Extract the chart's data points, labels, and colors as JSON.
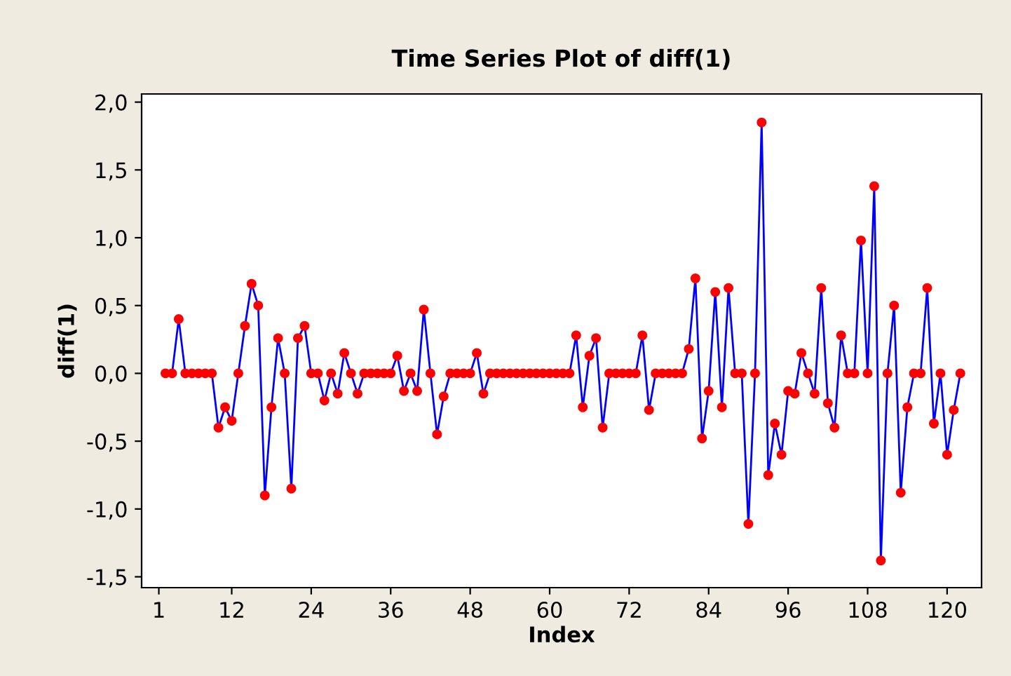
{
  "chart_data": {
    "type": "line",
    "title": "Time Series Plot of diff(1)",
    "xlabel": "Index",
    "ylabel": "diff(1)",
    "x": [
      2,
      3,
      4,
      5,
      6,
      7,
      8,
      9,
      10,
      11,
      12,
      13,
      14,
      15,
      16,
      17,
      18,
      19,
      20,
      21,
      22,
      23,
      24,
      25,
      26,
      27,
      28,
      29,
      30,
      31,
      32,
      33,
      34,
      35,
      36,
      37,
      38,
      39,
      40,
      41,
      42,
      43,
      44,
      45,
      46,
      47,
      48,
      49,
      50,
      51,
      52,
      53,
      54,
      55,
      56,
      57,
      58,
      59,
      60,
      61,
      62,
      63,
      64,
      65,
      66,
      67,
      68,
      69,
      70,
      71,
      72,
      73,
      74,
      75,
      76,
      77,
      78,
      79,
      80,
      81,
      82,
      83,
      84,
      85,
      86,
      87,
      88,
      89,
      90,
      91,
      92,
      93,
      94,
      95,
      96,
      97,
      98,
      99,
      100,
      101,
      102,
      103,
      104,
      105,
      106,
      107,
      108,
      109,
      110,
      111,
      112,
      113,
      114,
      115,
      116,
      117,
      118,
      119,
      120,
      121,
      122
    ],
    "series": [
      {
        "color": "#0000ff",
        "colors": [
          "#ff0000",
          "#ff0000",
          "#ff0000",
          "#ff0000",
          "#ff0000",
          "#ff0000",
          "#ff0000",
          "#ff0000",
          "#ff0000",
          "#ff0000",
          "#ff0000",
          "#ff0000",
          "#ff0000",
          "#ff0000",
          "#ff0000",
          "#ff0000",
          "#ff0000",
          "#ff0000",
          "#ff0000",
          "#ff0000",
          "#ff0000",
          "#ff0000",
          "#ff0000",
          "#ff0000",
          "#ff0000",
          "#ff0000",
          "#ff0000",
          "#ff0000",
          "#ff0000",
          "#ff0000",
          "#ff0000",
          "#ff0000",
          "#ff0000",
          "#ff0000",
          "#ff0000",
          "#ff0000",
          "#ff0000",
          "#ff0000",
          "#ff0000",
          "#ff0000",
          "#ff0000",
          "#ff0000",
          "#ff0000",
          "#ff0000",
          "#ff0000",
          "#ff0000",
          "#ff0000",
          "#ff0000",
          "#ff0000",
          "#ff0000",
          "#ff0000",
          "#ff0000",
          "#ff0000",
          "#ff0000",
          "#ff0000",
          "#ff0000",
          "#ff0000",
          "#ff0000",
          "#ff0000",
          "#ff0000",
          "#ff0000",
          "#ff0000",
          "#ff0000",
          "#ff0000",
          "#ff0000",
          "#ff0000",
          "#ff0000",
          "#ff0000",
          "#ff0000",
          "#ff0000",
          "#ff0000",
          "#ff0000",
          "#ff0000",
          "#ff0000",
          "#ff0000",
          "#ff0000",
          "#ff0000",
          "#ff0000",
          "#ff0000",
          "#ff0000",
          "#ff0000",
          "#ff0000",
          "#ff0000",
          "#ff0000",
          "#ff0000",
          "#ff0000",
          "#ff0000",
          "#ff0000",
          "#ff0000",
          "#ff0000",
          "#ff0000",
          "#ff0000",
          "#ff0000",
          "#ff0000",
          "#ff0000",
          "#ff0000",
          "#ff0000",
          "#ff0000",
          "#ff0000",
          "#ff0000",
          "#ff0000",
          "#ff0000",
          "#ff0000",
          "#ff0000",
          "#ff0000",
          "#ff0000",
          "#ff0000",
          "#ff0000",
          "#ff0000",
          "#ff0000",
          "#ff0000",
          "#ff0000",
          "#ff0000",
          "#ff0000",
          "#ff0000",
          "#ff0000",
          "#ff0000",
          "#ff0000",
          "#ff0000",
          "#ff0000",
          "#ff0000"
        ],
        "values": [
          0,
          0,
          0.4,
          0,
          0,
          0,
          0,
          0,
          -0.4,
          -0.25,
          -0.35,
          0,
          0.35,
          0.66,
          0.5,
          -0.9,
          -0.25,
          0.26,
          0,
          -0.85,
          0.26,
          0.35,
          0,
          0,
          -0.2,
          0,
          -0.15,
          0.15,
          0,
          -0.15,
          0,
          0,
          0,
          0,
          0,
          0.13,
          -0.13,
          0,
          -0.13,
          0.47,
          0,
          -0.45,
          -0.17,
          0,
          0,
          0,
          0,
          0.15,
          -0.15,
          0,
          0,
          0,
          0,
          0,
          0,
          0,
          0,
          0,
          0,
          0,
          0,
          0,
          0.28,
          -0.25,
          0.13,
          0.26,
          -0.4,
          0,
          0,
          0,
          0,
          0,
          0.28,
          -0.27,
          0,
          0,
          0,
          0,
          0,
          0.18,
          0.7,
          -0.48,
          -0.13,
          0.6,
          -0.25,
          0.63,
          0,
          0,
          -1.11,
          0,
          1.85,
          -0.75,
          -0.37,
          -0.6,
          -0.13,
          -0.15,
          0.15,
          0,
          -0.15,
          0.63,
          -0.22,
          -0.4,
          0.28,
          0,
          0,
          0.98,
          0,
          1.38,
          -1.38,
          0,
          0.5,
          -0.88,
          -0.25,
          0,
          0,
          0.63,
          -0.37,
          0,
          -0.6,
          -0.27,
          0
        ]
      }
    ],
    "xlim": [
      -1.6,
      125.2
    ],
    "ylim": [
      -1.58,
      2.06
    ],
    "xticks": [
      1,
      12,
      24,
      36,
      48,
      60,
      72,
      84,
      96,
      108,
      120
    ],
    "yticks": [
      {
        "value": -1.5,
        "label": "-1,5"
      },
      {
        "value": -1.0,
        "label": "-1,0"
      },
      {
        "value": -0.5,
        "label": "-0,5"
      },
      {
        "value": 0.0,
        "label": "0,0"
      },
      {
        "value": 0.5,
        "label": "0,5"
      },
      {
        "value": 1.0,
        "label": "1,0"
      },
      {
        "value": 1.5,
        "label": "1,5"
      },
      {
        "value": 2.0,
        "label": "2,0"
      }
    ],
    "marker": "circle",
    "line_style": "solid",
    "grid": false,
    "legend": false
  }
}
